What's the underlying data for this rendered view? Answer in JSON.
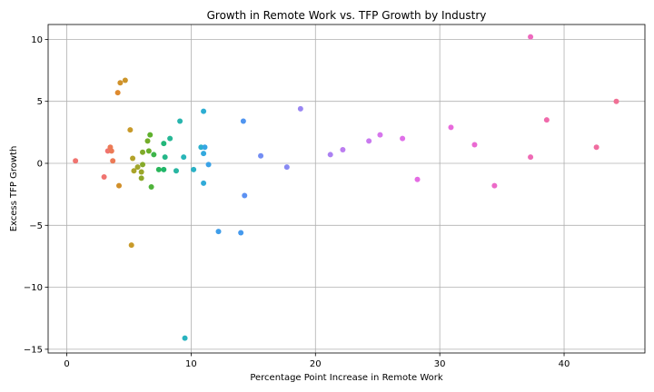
{
  "chart_data": {
    "type": "scatter",
    "title": "Growth in Remote Work vs. TFP Growth by Industry",
    "xlabel": "Percentage Point Increase in Remote Work",
    "ylabel": "Excess TFP Growth",
    "xlim": [
      -1.5,
      46.5
    ],
    "ylim": [
      -15.3,
      11.2
    ],
    "xticks": [
      0,
      10,
      20,
      30,
      40
    ],
    "yticks": [
      -15,
      -10,
      -5,
      0,
      5,
      10
    ],
    "grid": true,
    "points": [
      {
        "x": 0.7,
        "y": 0.2,
        "color": "#f07470"
      },
      {
        "x": 3.0,
        "y": -1.1,
        "color": "#f07470"
      },
      {
        "x": 3.3,
        "y": 1.0,
        "color": "#f07470"
      },
      {
        "x": 3.5,
        "y": 1.3,
        "color": "#ec7a56"
      },
      {
        "x": 3.6,
        "y": 1.0,
        "color": "#ec7a56"
      },
      {
        "x": 3.7,
        "y": 0.2,
        "color": "#ec7a56"
      },
      {
        "x": 4.1,
        "y": 5.7,
        "color": "#de8a2e"
      },
      {
        "x": 4.2,
        "y": -1.8,
        "color": "#d18f2a"
      },
      {
        "x": 4.3,
        "y": 6.5,
        "color": "#d0912a"
      },
      {
        "x": 4.7,
        "y": 6.7,
        "color": "#cc952a"
      },
      {
        "x": 5.1,
        "y": 2.7,
        "color": "#c89a2a"
      },
      {
        "x": 5.2,
        "y": -6.6,
        "color": "#c89a2a"
      },
      {
        "x": 5.3,
        "y": 0.4,
        "color": "#b3a22a"
      },
      {
        "x": 5.4,
        "y": -0.6,
        "color": "#aaa42a"
      },
      {
        "x": 5.7,
        "y": -0.3,
        "color": "#a0a52a"
      },
      {
        "x": 6.0,
        "y": -0.7,
        "color": "#9aa62a"
      },
      {
        "x": 6.0,
        "y": -1.2,
        "color": "#8ea82a"
      },
      {
        "x": 6.1,
        "y": -0.1,
        "color": "#86aa2a"
      },
      {
        "x": 6.1,
        "y": 0.9,
        "color": "#80ab2a"
      },
      {
        "x": 6.5,
        "y": 1.8,
        "color": "#74ad2b"
      },
      {
        "x": 6.6,
        "y": 1.0,
        "color": "#6aaf2b"
      },
      {
        "x": 6.7,
        "y": 2.3,
        "color": "#5fb12e"
      },
      {
        "x": 6.8,
        "y": -1.9,
        "color": "#4fb33a"
      },
      {
        "x": 7.0,
        "y": 0.7,
        "color": "#3db54a"
      },
      {
        "x": 7.4,
        "y": -0.5,
        "color": "#2ab65a"
      },
      {
        "x": 7.8,
        "y": -0.5,
        "color": "#20b66a"
      },
      {
        "x": 7.8,
        "y": 1.6,
        "color": "#22b77a"
      },
      {
        "x": 7.9,
        "y": 0.5,
        "color": "#25b788"
      },
      {
        "x": 8.3,
        "y": 2.0,
        "color": "#27b795"
      },
      {
        "x": 8.8,
        "y": -0.6,
        "color": "#29b6a2"
      },
      {
        "x": 9.1,
        "y": 3.4,
        "color": "#29b5ae"
      },
      {
        "x": 9.4,
        "y": 0.5,
        "color": "#29b5b8"
      },
      {
        "x": 9.5,
        "y": -14.1,
        "color": "#29b3bf"
      },
      {
        "x": 10.2,
        "y": -0.5,
        "color": "#2ab2c6"
      },
      {
        "x": 10.8,
        "y": 1.3,
        "color": "#2bb0cd"
      },
      {
        "x": 11.0,
        "y": 4.2,
        "color": "#2daed3"
      },
      {
        "x": 11.0,
        "y": -1.6,
        "color": "#30abd9"
      },
      {
        "x": 11.0,
        "y": 0.8,
        "color": "#33a9de"
      },
      {
        "x": 11.1,
        "y": 1.3,
        "color": "#36a6e3"
      },
      {
        "x": 11.4,
        "y": -0.1,
        "color": "#3aa2e7"
      },
      {
        "x": 12.2,
        "y": -5.5,
        "color": "#3f9eea"
      },
      {
        "x": 14.0,
        "y": -5.6,
        "color": "#4599ed"
      },
      {
        "x": 14.2,
        "y": 3.4,
        "color": "#5095f0"
      },
      {
        "x": 14.3,
        "y": -2.6,
        "color": "#5c91f2"
      },
      {
        "x": 15.6,
        "y": 0.6,
        "color": "#738df3"
      },
      {
        "x": 17.7,
        "y": -0.3,
        "color": "#888af3"
      },
      {
        "x": 18.8,
        "y": 4.4,
        "color": "#9986f3"
      },
      {
        "x": 21.2,
        "y": 0.7,
        "color": "#ab81f2"
      },
      {
        "x": 22.2,
        "y": 1.1,
        "color": "#bc7df0"
      },
      {
        "x": 24.3,
        "y": 1.8,
        "color": "#c97aef"
      },
      {
        "x": 25.2,
        "y": 2.3,
        "color": "#d676ec"
      },
      {
        "x": 27.0,
        "y": 2.0,
        "color": "#e070e9"
      },
      {
        "x": 28.2,
        "y": -1.3,
        "color": "#e46ce3"
      },
      {
        "x": 30.9,
        "y": 2.9,
        "color": "#e86adc"
      },
      {
        "x": 32.8,
        "y": 1.5,
        "color": "#ea6ad2"
      },
      {
        "x": 34.4,
        "y": -1.8,
        "color": "#ec6ac8"
      },
      {
        "x": 37.3,
        "y": 10.2,
        "color": "#ee6abe"
      },
      {
        "x": 37.3,
        "y": 0.5,
        "color": "#ef6ab5"
      },
      {
        "x": 38.6,
        "y": 3.5,
        "color": "#f06aab"
      },
      {
        "x": 42.6,
        "y": 1.3,
        "color": "#f06da0"
      },
      {
        "x": 44.2,
        "y": 5.0,
        "color": "#f07095"
      }
    ]
  }
}
